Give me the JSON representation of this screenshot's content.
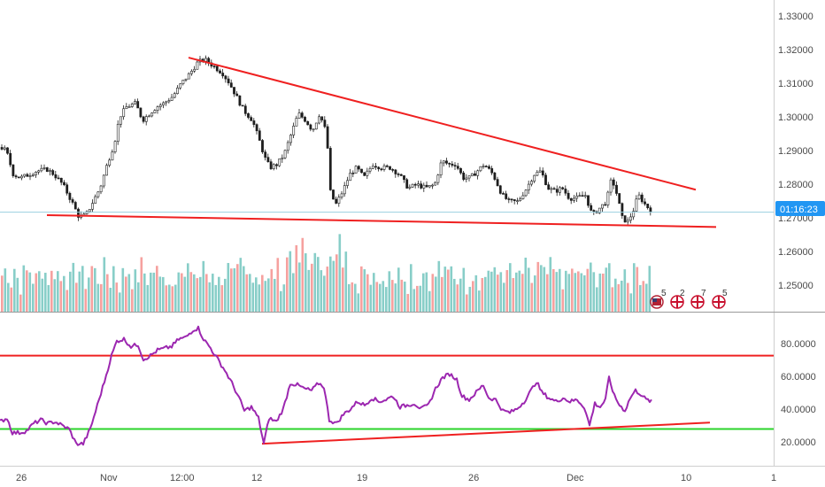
{
  "chart_data": [
    {
      "type": "candlestick",
      "title": "",
      "x_ticks": [
        "26",
        "Nov",
        "12:00",
        "12",
        "19",
        "26",
        "Dec",
        "10",
        "1"
      ],
      "y_ticks": [
        "1.33000",
        "1.32000",
        "1.31000",
        "1.30000",
        "1.29000",
        "1.28000",
        "1.27000",
        "1.26000",
        "1.25000"
      ],
      "ylim": [
        1.2425,
        1.3345
      ],
      "current_price_label": "01:16:23",
      "up_color": "#26a69a",
      "down_color": "#ef5350",
      "price_path": [
        [
          0,
          1.291
        ],
        [
          6,
          1.29
        ],
        [
          14,
          1.283
        ],
        [
          22,
          1.282
        ],
        [
          32,
          1.283
        ],
        [
          40,
          1.284
        ],
        [
          52,
          1.2845
        ],
        [
          60,
          1.283
        ],
        [
          70,
          1.28
        ],
        [
          80,
          1.275
        ],
        [
          88,
          1.2705
        ],
        [
          96,
          1.271
        ],
        [
          104,
          1.275
        ],
        [
          112,
          1.279
        ],
        [
          120,
          1.286
        ],
        [
          128,
          1.292
        ],
        [
          134,
          1.3
        ],
        [
          142,
          1.303
        ],
        [
          152,
          1.304
        ],
        [
          160,
          1.299
        ],
        [
          168,
          1.301
        ],
        [
          176,
          1.303
        ],
        [
          184,
          1.304
        ],
        [
          194,
          1.306
        ],
        [
          204,
          1.31
        ],
        [
          214,
          1.313
        ],
        [
          222,
          1.316
        ],
        [
          230,
          1.317
        ],
        [
          240,
          1.315
        ],
        [
          250,
          1.313
        ],
        [
          258,
          1.31
        ],
        [
          266,
          1.306
        ],
        [
          274,
          1.302
        ],
        [
          284,
          1.299
        ],
        [
          292,
          1.293
        ],
        [
          298,
          1.288
        ],
        [
          304,
          1.285
        ],
        [
          312,
          1.286
        ],
        [
          320,
          1.289
        ],
        [
          328,
          1.295
        ],
        [
          336,
          1.301
        ],
        [
          344,
          1.299
        ],
        [
          352,
          1.296
        ],
        [
          360,
          1.301
        ],
        [
          368,
          1.295
        ],
        [
          372,
          1.278
        ],
        [
          378,
          1.274
        ],
        [
          386,
          1.278
        ],
        [
          394,
          1.283
        ],
        [
          402,
          1.285
        ],
        [
          410,
          1.282
        ],
        [
          420,
          1.286
        ],
        [
          430,
          1.285
        ],
        [
          440,
          1.285
        ],
        [
          450,
          1.283
        ],
        [
          460,
          1.279
        ],
        [
          470,
          1.28
        ],
        [
          480,
          1.279
        ],
        [
          490,
          1.28
        ],
        [
          498,
          1.287
        ],
        [
          506,
          1.286
        ],
        [
          514,
          1.286
        ],
        [
          522,
          1.282
        ],
        [
          530,
          1.282
        ],
        [
          538,
          1.284
        ],
        [
          546,
          1.286
        ],
        [
          556,
          1.283
        ],
        [
          566,
          1.277
        ],
        [
          574,
          1.275
        ],
        [
          584,
          1.275
        ],
        [
          594,
          1.279
        ],
        [
          602,
          1.283
        ],
        [
          610,
          1.284
        ],
        [
          618,
          1.279
        ],
        [
          626,
          1.278
        ],
        [
          634,
          1.279
        ],
        [
          642,
          1.276
        ],
        [
          650,
          1.276
        ],
        [
          660,
          1.277
        ],
        [
          668,
          1.271
        ],
        [
          676,
          1.273
        ],
        [
          684,
          1.275
        ],
        [
          690,
          1.282
        ],
        [
          696,
          1.277
        ],
        [
          702,
          1.27
        ],
        [
          708,
          1.269
        ],
        [
          714,
          1.272
        ],
        [
          720,
          1.277
        ],
        [
          728,
          1.274
        ],
        [
          736,
          1.272
        ]
      ],
      "annotations": [
        {
          "type": "trendline",
          "color": "#ef2020",
          "from": [
            213,
            1.3175
          ],
          "to": [
            786,
            1.2785
          ]
        },
        {
          "type": "trendline",
          "color": "#ef2020",
          "from": [
            53,
            1.271
          ],
          "to": [
            809,
            1.2675
          ]
        }
      ]
    },
    {
      "type": "bar",
      "title": "",
      "series_name": "",
      "values_relative": [
        0.6,
        0.8,
        0.7,
        0.4,
        0.9,
        0.5,
        0.3,
        0.6,
        0.7,
        0.8,
        0.5,
        0.4,
        0.6,
        0.9,
        0.7,
        0.5
      ]
    },
    {
      "type": "line",
      "title": "",
      "y_ticks": [
        "80.0000",
        "60.0000",
        "40.0000",
        "20.0000"
      ],
      "ylim": [
        10,
        93
      ],
      "rsi_path": [
        [
          0,
          34
        ],
        [
          8,
          36
        ],
        [
          14,
          28
        ],
        [
          22,
          28
        ],
        [
          30,
          29
        ],
        [
          38,
          33
        ],
        [
          46,
          35
        ],
        [
          54,
          33
        ],
        [
          62,
          34
        ],
        [
          70,
          32
        ],
        [
          78,
          30
        ],
        [
          86,
          22
        ],
        [
          94,
          22
        ],
        [
          102,
          30
        ],
        [
          110,
          43
        ],
        [
          118,
          56
        ],
        [
          126,
          70
        ],
        [
          132,
          78
        ],
        [
          140,
          79
        ],
        [
          148,
          75
        ],
        [
          156,
          76
        ],
        [
          162,
          68
        ],
        [
          170,
          70
        ],
        [
          178,
          73
        ],
        [
          186,
          74
        ],
        [
          194,
          75
        ],
        [
          202,
          79
        ],
        [
          210,
          80
        ],
        [
          218,
          84
        ],
        [
          224,
          85
        ],
        [
          230,
          79
        ],
        [
          238,
          74
        ],
        [
          246,
          68
        ],
        [
          254,
          62
        ],
        [
          262,
          55
        ],
        [
          270,
          47
        ],
        [
          276,
          40
        ],
        [
          284,
          42
        ],
        [
          292,
          36
        ],
        [
          298,
          22
        ],
        [
          304,
          36
        ],
        [
          312,
          34
        ],
        [
          320,
          41
        ],
        [
          328,
          55
        ],
        [
          336,
          54
        ],
        [
          344,
          52
        ],
        [
          352,
          51
        ],
        [
          360,
          55
        ],
        [
          366,
          53
        ],
        [
          372,
          35
        ],
        [
          380,
          33
        ],
        [
          388,
          38
        ],
        [
          396,
          41
        ],
        [
          404,
          45
        ],
        [
          412,
          43
        ],
        [
          420,
          47
        ],
        [
          428,
          45
        ],
        [
          436,
          46
        ],
        [
          444,
          48
        ],
        [
          452,
          42
        ],
        [
          460,
          43
        ],
        [
          468,
          44
        ],
        [
          476,
          41
        ],
        [
          484,
          43
        ],
        [
          492,
          52
        ],
        [
          500,
          58
        ],
        [
          508,
          60
        ],
        [
          516,
          57
        ],
        [
          522,
          48
        ],
        [
          530,
          46
        ],
        [
          538,
          50
        ],
        [
          546,
          54
        ],
        [
          552,
          47
        ],
        [
          560,
          46
        ],
        [
          568,
          40
        ],
        [
          576,
          39
        ],
        [
          584,
          41
        ],
        [
          592,
          45
        ],
        [
          600,
          51
        ],
        [
          606,
          56
        ],
        [
          612,
          50
        ],
        [
          620,
          47
        ],
        [
          628,
          45
        ],
        [
          636,
          47
        ],
        [
          644,
          45
        ],
        [
          652,
          46
        ],
        [
          660,
          42
        ],
        [
          666,
          32
        ],
        [
          672,
          44
        ],
        [
          678,
          42
        ],
        [
          684,
          46
        ],
        [
          688,
          58
        ],
        [
          694,
          48
        ],
        [
          700,
          43
        ],
        [
          706,
          40
        ],
        [
          712,
          47
        ],
        [
          718,
          51
        ],
        [
          724,
          49
        ],
        [
          730,
          46
        ],
        [
          736,
          45
        ]
      ],
      "annotations": [
        {
          "type": "hline",
          "value": 70,
          "color": "#ef2020"
        },
        {
          "type": "hline",
          "value": 30,
          "color": "#2bd32b"
        },
        {
          "type": "trendline",
          "color": "#ef2020",
          "from": [
            296,
            22
          ],
          "to": [
            802,
            33.5
          ]
        }
      ]
    }
  ],
  "events": [
    {
      "icon": "us-flag-icon",
      "count": "5"
    },
    {
      "icon": "uk-flag-icon",
      "count": "2"
    },
    {
      "icon": "uk-flag-icon",
      "count": "7"
    },
    {
      "icon": "uk-flag-icon",
      "count": "5"
    }
  ],
  "colors": {
    "rsi_line": "#9c27b0",
    "trend_red": "#ef2020",
    "oversold_green": "#2bd32b",
    "price_label_bg": "#2196f3"
  }
}
